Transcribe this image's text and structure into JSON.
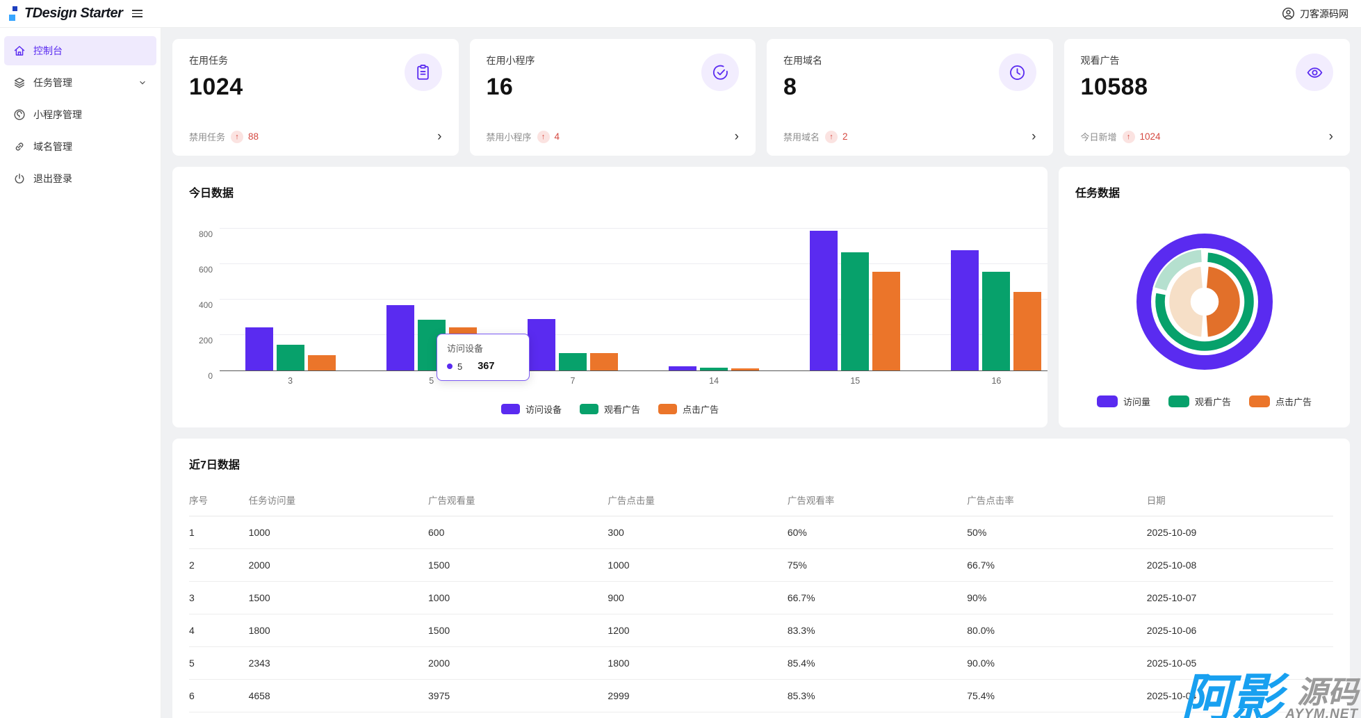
{
  "header": {
    "logo": "TDesign Starter",
    "user": "刀客源码网"
  },
  "icons": {
    "chevron_right": "›",
    "up_arrow": "↑"
  },
  "colors": {
    "brand_purple": "#5a2bf0",
    "brand_light_purple_bg": "#f2edfe",
    "green": "#07a16b",
    "orange": "#eb752a",
    "red": "#d54941",
    "red_bg": "#fbe3e1",
    "logo_square_dark": "#1d3fbf",
    "logo_square_light": "#38a6ff",
    "watermark_blue": "#18a0f0"
  },
  "sidebar": {
    "items": [
      {
        "label": "控制台",
        "icon": "home-icon",
        "active": true,
        "has_submenu": false
      },
      {
        "label": "任务管理",
        "icon": "layers-icon",
        "active": false,
        "has_submenu": true
      },
      {
        "label": "小程序管理",
        "icon": "applet-icon",
        "active": false,
        "has_submenu": false
      },
      {
        "label": "域名管理",
        "icon": "link-icon",
        "active": false,
        "has_submenu": false
      },
      {
        "label": "退出登录",
        "icon": "power-icon",
        "active": false,
        "has_submenu": false
      }
    ]
  },
  "stat_cards": [
    {
      "title": "在用任务",
      "value": "1024",
      "icon": "clipboard-icon",
      "footer_label": "禁用任务",
      "footer_value": "88"
    },
    {
      "title": "在用小程序",
      "value": "16",
      "icon": "check-circle-icon",
      "footer_label": "禁用小程序",
      "footer_value": "4"
    },
    {
      "title": "在用域名",
      "value": "8",
      "icon": "clock-icon",
      "footer_label": "禁用域名",
      "footer_value": "2"
    },
    {
      "title": "观看广告",
      "value": "10588",
      "icon": "eye-icon",
      "footer_label": "今日新增",
      "footer_value": "1024"
    }
  ],
  "chart_data": [
    {
      "type": "bar",
      "title": "今日数据",
      "categories": [
        "3",
        "5",
        "7",
        "14",
        "15",
        "16"
      ],
      "series": [
        {
          "name": "访问设备",
          "color": "#5a2bf0",
          "values": [
            245,
            367,
            290,
            25,
            790,
            678
          ]
        },
        {
          "name": "观看广告",
          "color": "#07a16b",
          "values": [
            145,
            288,
            100,
            15,
            667,
            556
          ]
        },
        {
          "name": "点击广告",
          "color": "#eb752a",
          "values": [
            88,
            245,
            100,
            10,
            555,
            445
          ]
        }
      ],
      "ylim": [
        0,
        800
      ],
      "yticks": [
        0,
        200,
        400,
        600,
        800
      ],
      "grid": true,
      "legend_position": "bottom",
      "tooltip": {
        "title": "访问设备",
        "label": "5",
        "value": "367"
      }
    },
    {
      "type": "pie",
      "title": "任务数据",
      "legend": [
        {
          "name": "访问量",
          "color": "#5a2bf0"
        },
        {
          "name": "观看广告",
          "color": "#07a16b"
        },
        {
          "name": "点击广告",
          "color": "#eb752a"
        }
      ],
      "rings": [
        {
          "name": "访问量",
          "segments": [
            {
              "start": 0,
              "end": 360,
              "color": "#5a2bf0",
              "r0": 77,
              "r1": 98
            }
          ]
        },
        {
          "name": "观看广告",
          "segments": [
            {
              "start": 3,
              "end": 281,
              "color": "#07a16b",
              "r0": 56,
              "r1": 72
            },
            {
              "start": 285,
              "end": 357,
              "color": "#b5e0cf",
              "r0": 56,
              "r1": 76
            }
          ]
        },
        {
          "name": "点击广告",
          "segments": [
            {
              "start": 5,
              "end": 176,
              "color": "#e2702a",
              "r0": 19,
              "r1": 52
            },
            {
              "start": 184,
              "end": 355,
              "color": "#f6dfc7",
              "r0": 19,
              "r1": 52
            }
          ]
        }
      ]
    }
  ],
  "table": {
    "title": "近7日数据",
    "columns": [
      "序号",
      "任务访问量",
      "广告观看量",
      "广告点击量",
      "广告观看率",
      "广告点击率",
      "日期"
    ],
    "rows": [
      [
        "1",
        "1000",
        "600",
        "300",
        "60%",
        "50%",
        "2025-10-09"
      ],
      [
        "2",
        "2000",
        "1500",
        "1000",
        "75%",
        "66.7%",
        "2025-10-08"
      ],
      [
        "3",
        "1500",
        "1000",
        "900",
        "66.7%",
        "90%",
        "2025-10-07"
      ],
      [
        "4",
        "1800",
        "1500",
        "1200",
        "83.3%",
        "80.0%",
        "2025-10-06"
      ],
      [
        "5",
        "2343",
        "2000",
        "1800",
        "85.4%",
        "90.0%",
        "2025-10-05"
      ],
      [
        "6",
        "4658",
        "3975",
        "2999",
        "85.3%",
        "75.4%",
        "2025-10-04"
      ]
    ]
  },
  "watermark": {
    "text_primary": "阿影",
    "text_secondary": "源码",
    "subtext": "AYYM.NET"
  }
}
